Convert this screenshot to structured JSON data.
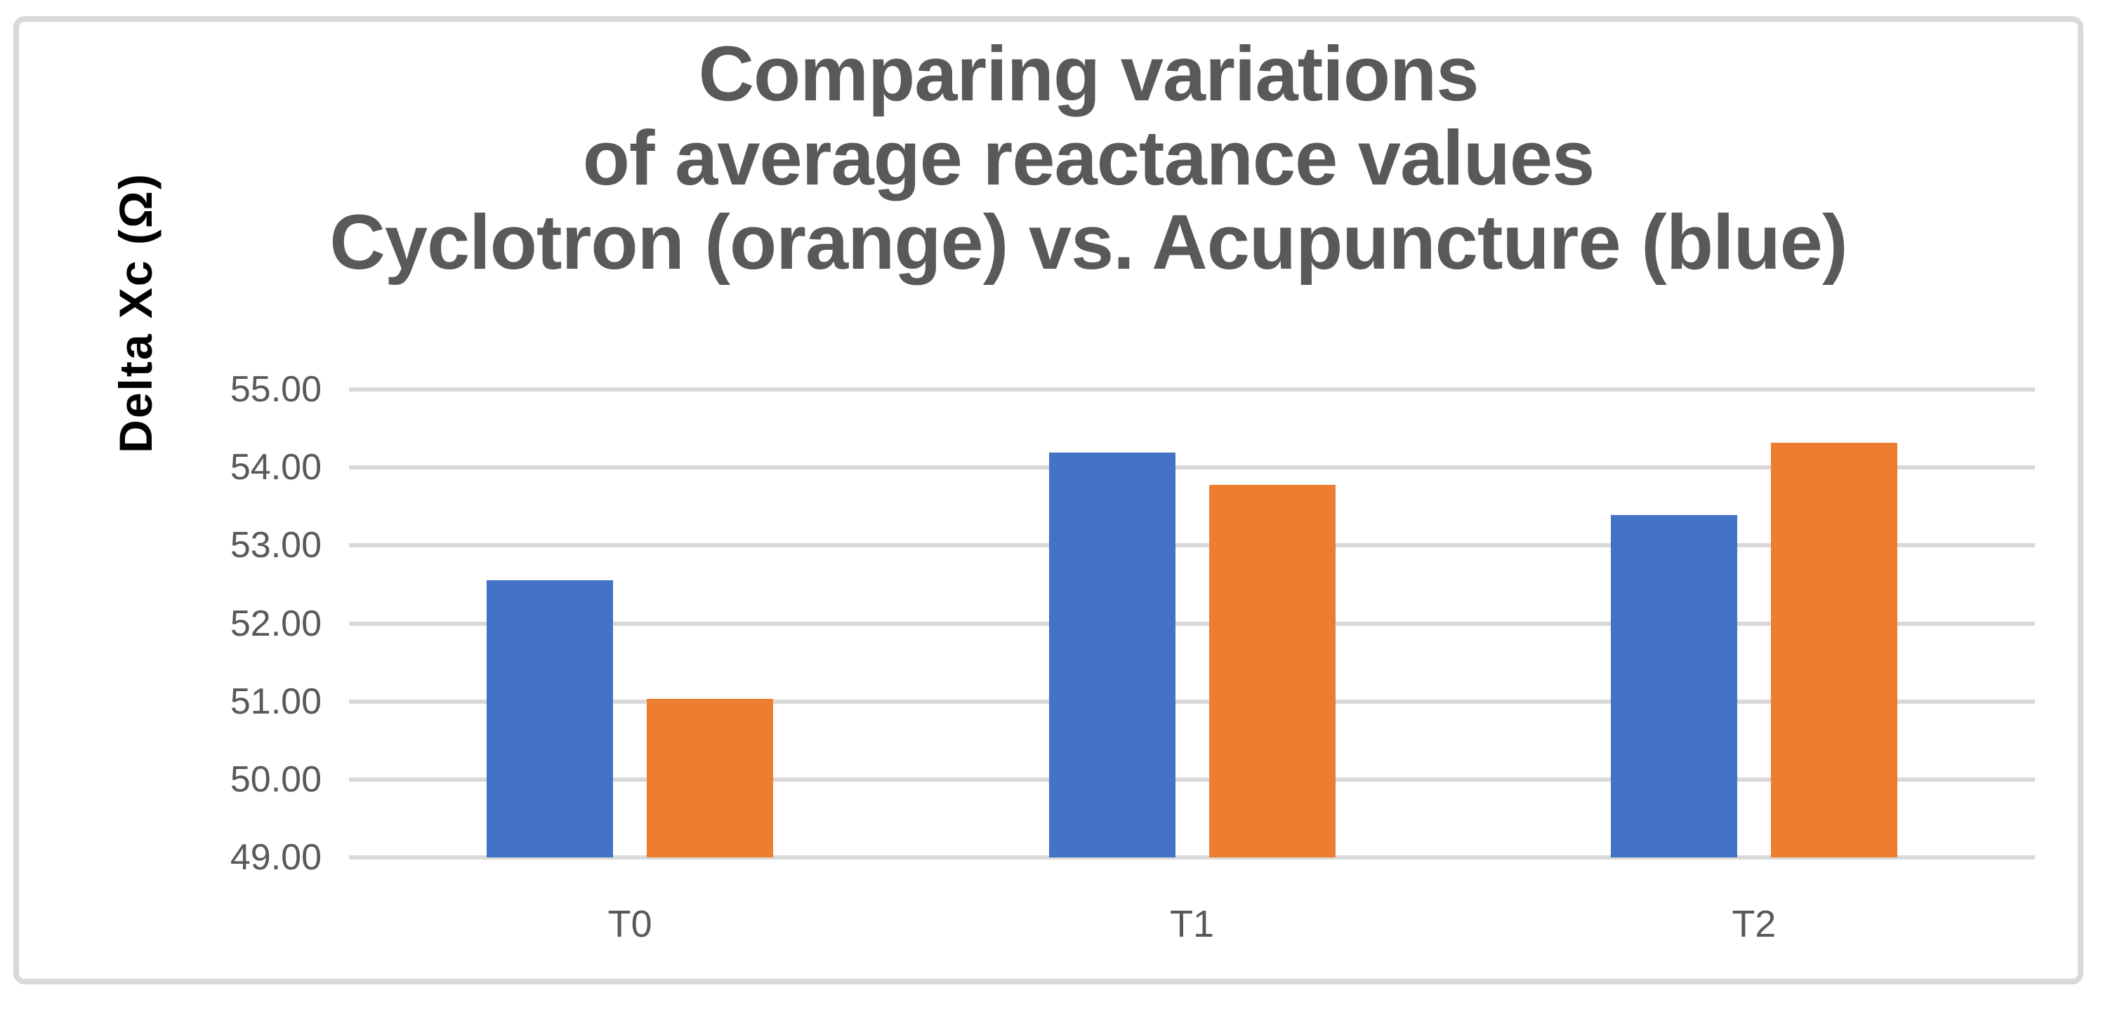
{
  "chart_data": {
    "type": "bar",
    "title_lines": [
      "Comparing variations",
      "of average reactance values",
      "Cyclotron (orange) vs. Acupuncture (blue)"
    ],
    "ylabel": "Delta Xc (Ω)",
    "categories": [
      "T0",
      "T1",
      "T2"
    ],
    "series": [
      {
        "name": "Acupuncture (blue)",
        "color": "#4472C4",
        "values": [
          52.55,
          54.19,
          53.39
        ]
      },
      {
        "name": "Cyclotron (orange)",
        "color": "#ED7D31",
        "values": [
          51.03,
          53.78,
          54.32
        ]
      }
    ],
    "y_ticks": [
      {
        "label": "55.00",
        "value": 55
      },
      {
        "label": "54.00",
        "value": 54
      },
      {
        "label": "53.00",
        "value": 53
      },
      {
        "label": "52.00",
        "value": 52
      },
      {
        "label": "51.00",
        "value": 51
      },
      {
        "label": "50.00",
        "value": 50
      },
      {
        "label": "49.00",
        "value": 49
      }
    ],
    "ylim": [
      49,
      55
    ],
    "grid": true,
    "legend_position": "none"
  },
  "colors": {
    "background": "#FFFFFF",
    "frame_border": "#D9D9D9",
    "gridline": "#D9D9D9",
    "title_text": "#595959",
    "axis_text": "#595959",
    "ylabel_text": "#000000",
    "series_blue": "#4472C4",
    "series_orange": "#ED7D31"
  }
}
